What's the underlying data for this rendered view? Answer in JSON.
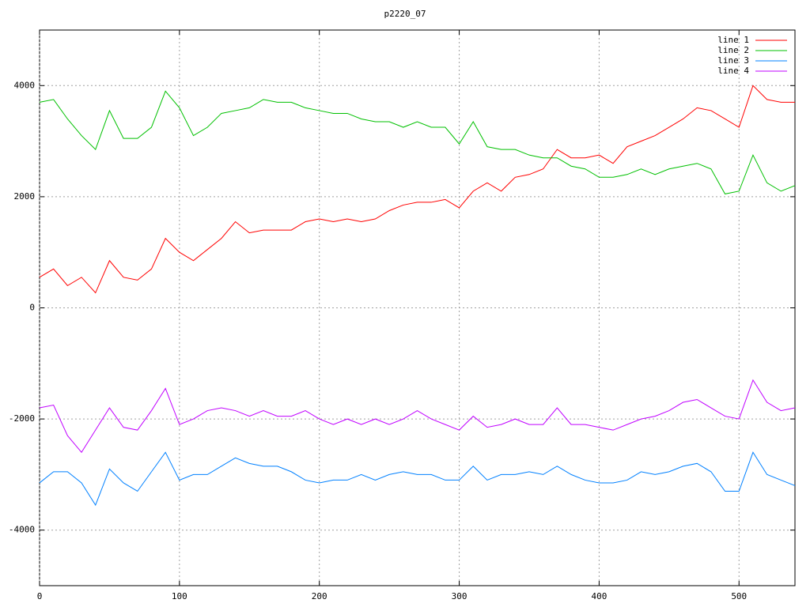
{
  "chart_data": {
    "type": "line",
    "title": "p2220_07",
    "x": [
      0,
      10,
      20,
      30,
      40,
      50,
      60,
      70,
      80,
      90,
      100,
      110,
      120,
      130,
      140,
      150,
      160,
      170,
      180,
      190,
      200,
      210,
      220,
      230,
      240,
      250,
      260,
      270,
      280,
      290,
      300,
      310,
      320,
      330,
      340,
      350,
      360,
      370,
      380,
      390,
      400,
      410,
      420,
      430,
      440,
      450,
      460,
      470,
      480,
      490,
      500,
      510,
      520,
      530,
      540
    ],
    "series": [
      {
        "name": "line 1",
        "color": "#ff0000",
        "values": [
          550,
          700,
          400,
          550,
          270,
          850,
          550,
          500,
          700,
          1250,
          1000,
          850,
          1050,
          1250,
          1550,
          1350,
          1400,
          1400,
          1400,
          1550,
          1600,
          1550,
          1600,
          1550,
          1600,
          1750,
          1850,
          1900,
          1900,
          1950,
          1800,
          2100,
          2250,
          2100,
          2350,
          2400,
          2500,
          2850,
          2700,
          2700,
          2750,
          2600,
          2900,
          3000,
          3100,
          3250,
          3400,
          3600,
          3550,
          3400,
          3250,
          4000,
          3750,
          3700,
          3700
        ]
      },
      {
        "name": "line 2",
        "color": "#00c000",
        "values": [
          3700,
          3750,
          3400,
          3100,
          2850,
          3550,
          3050,
          3050,
          3250,
          3900,
          3600,
          3100,
          3250,
          3500,
          3550,
          3600,
          3750,
          3700,
          3700,
          3600,
          3550,
          3500,
          3500,
          3400,
          3350,
          3350,
          3250,
          3350,
          3250,
          3250,
          2950,
          3350,
          2900,
          2850,
          2850,
          2750,
          2700,
          2700,
          2550,
          2500,
          2350,
          2350,
          2400,
          2500,
          2400,
          2500,
          2550,
          2600,
          2500,
          2050,
          2100,
          2750,
          2250,
          2100,
          2200
        ]
      },
      {
        "name": "line 3",
        "color": "#0080ff",
        "values": [
          -3150,
          -2950,
          -2950,
          -3150,
          -3550,
          -2900,
          -3150,
          -3300,
          -2950,
          -2600,
          -3100,
          -3000,
          -3000,
          -2850,
          -2700,
          -2800,
          -2850,
          -2850,
          -2950,
          -3100,
          -3150,
          -3100,
          -3100,
          -3000,
          -3100,
          -3000,
          -2950,
          -3000,
          -3000,
          -3100,
          -3100,
          -2850,
          -3100,
          -3000,
          -3000,
          -2950,
          -3000,
          -2850,
          -3000,
          -3100,
          -3150,
          -3150,
          -3100,
          -2950,
          -3000,
          -2950,
          -2850,
          -2800,
          -2950,
          -3300,
          -3300,
          -2600,
          -3000,
          -3100,
          -3200
        ]
      },
      {
        "name": "line 4",
        "color": "#c000ff",
        "values": [
          -1800,
          -1750,
          -2300,
          -2600,
          -2200,
          -1800,
          -2150,
          -2200,
          -1850,
          -1450,
          -2100,
          -2000,
          -1850,
          -1800,
          -1850,
          -1950,
          -1850,
          -1950,
          -1950,
          -1850,
          -2000,
          -2100,
          -2000,
          -2100,
          -2000,
          -2100,
          -2000,
          -1850,
          -2000,
          -2100,
          -2200,
          -1950,
          -2150,
          -2100,
          -2000,
          -2100,
          -2100,
          -1800,
          -2100,
          -2100,
          -2150,
          -2200,
          -2100,
          -2000,
          -1950,
          -1850,
          -1700,
          -1650,
          -1800,
          -1950,
          -2000,
          -1300,
          -1700,
          -1850,
          -1800
        ]
      }
    ],
    "xlim": [
      0,
      540
    ],
    "xticks": [
      0,
      100,
      200,
      300,
      400,
      500
    ],
    "ylim": [
      -5000,
      5000
    ],
    "yticks": [
      -4000,
      -2000,
      0,
      2000,
      4000
    ],
    "grid": true,
    "legend": "top-right"
  }
}
